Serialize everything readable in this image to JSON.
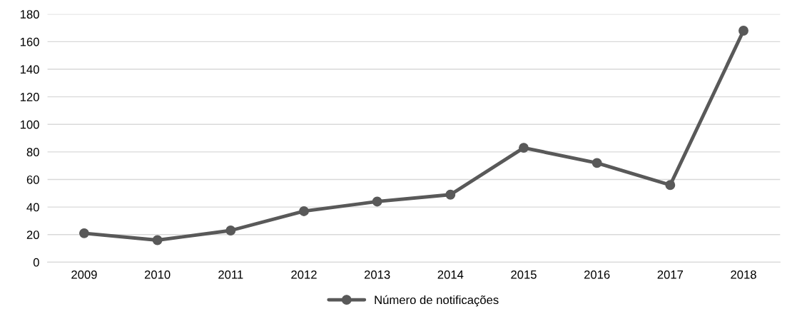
{
  "chart_data": {
    "type": "line",
    "categories": [
      "2009",
      "2010",
      "2011",
      "2012",
      "2013",
      "2014",
      "2015",
      "2016",
      "2017",
      "2018"
    ],
    "series": [
      {
        "name": "Número de notificações",
        "color": "#595959",
        "values": [
          21,
          16,
          23,
          37,
          44,
          49,
          83,
          72,
          56,
          168
        ]
      }
    ],
    "ylim": [
      0,
      180
    ],
    "yticks": [
      0,
      20,
      40,
      60,
      80,
      100,
      120,
      140,
      160,
      180
    ],
    "grid": "y",
    "legend": "bottom",
    "marker": "circle",
    "line_style": "solid"
  }
}
